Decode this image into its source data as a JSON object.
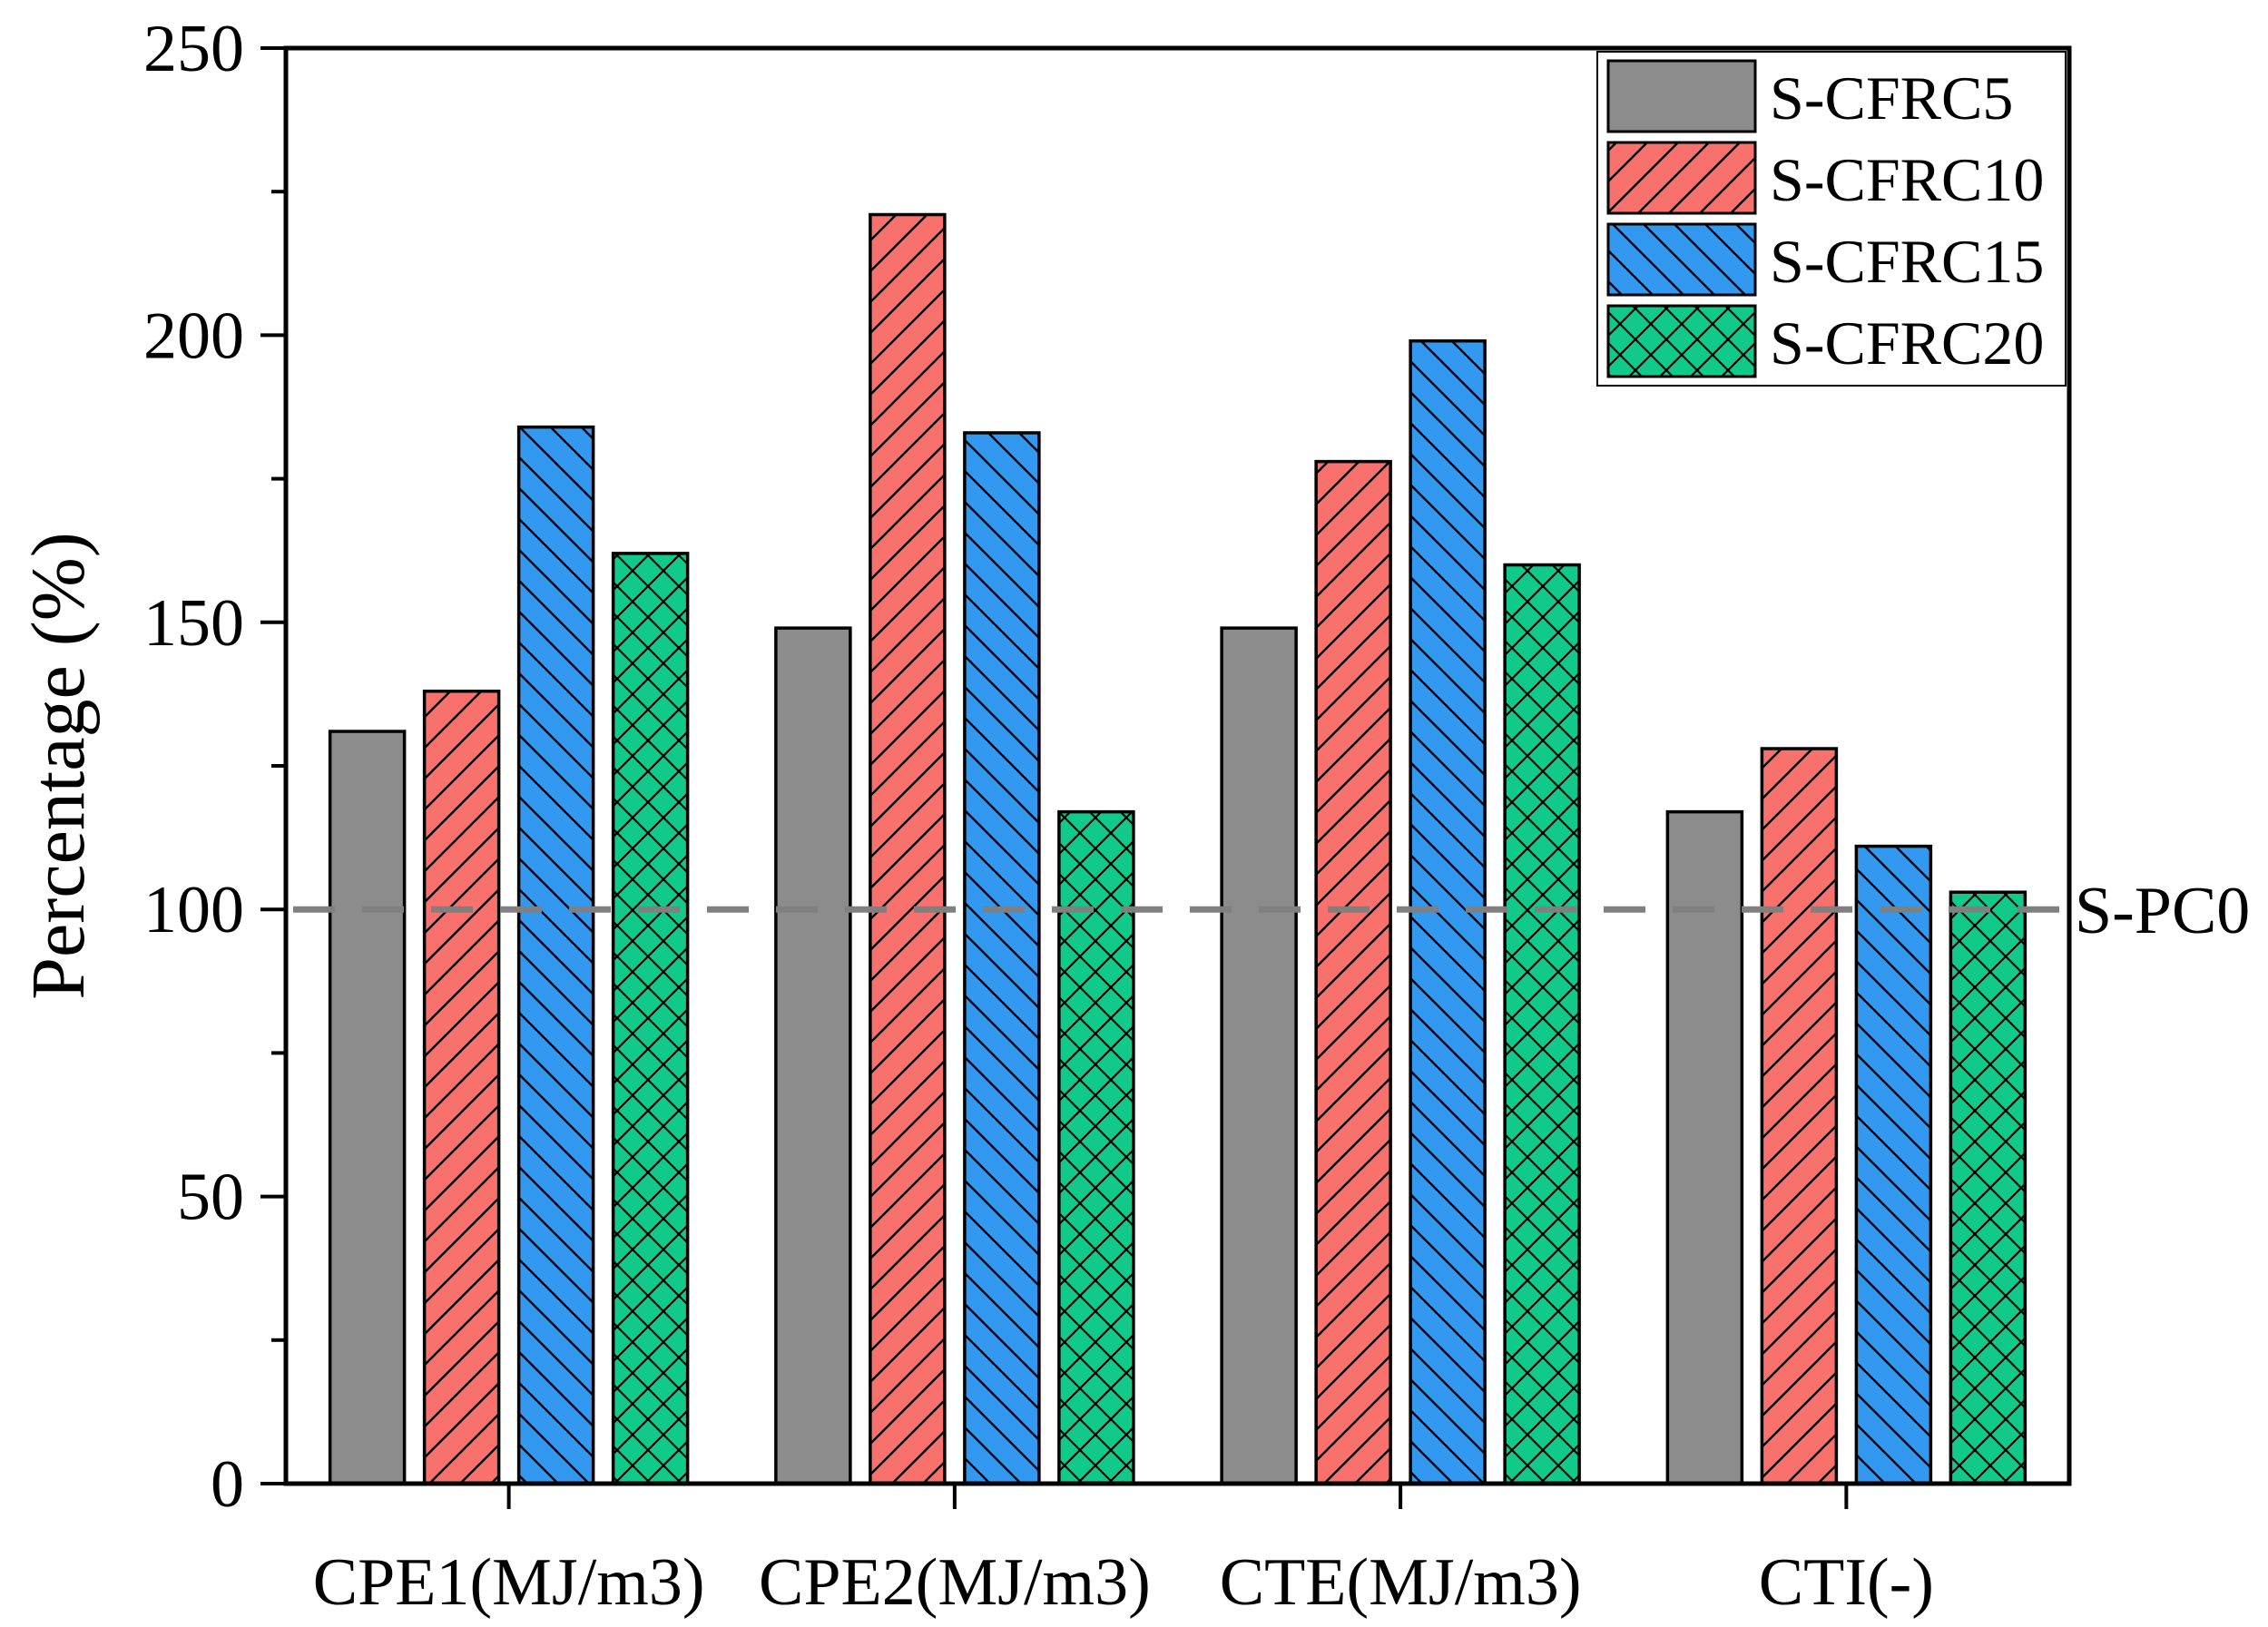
{
  "chart_data": {
    "type": "bar",
    "title": "",
    "xlabel": "",
    "ylabel": "Percentage (%)",
    "ylim": [
      0,
      250
    ],
    "yticks": [
      "0",
      "50",
      "100",
      "150",
      "200",
      "250"
    ],
    "categories": [
      "CPE1(MJ/m3)",
      "CPE2(MJ/m3)",
      "CTE(MJ/m3)",
      "CTI(-)"
    ],
    "series": [
      {
        "name": "S-CFRC5",
        "color": "#8c8c8c",
        "pattern": "solid",
        "values": [
          131,
          149,
          149,
          117
        ]
      },
      {
        "name": "S-CFRC10",
        "color": "#f8716c",
        "pattern": "forward-diagonal",
        "values": [
          138,
          221,
          178,
          128
        ]
      },
      {
        "name": "S-CFRC15",
        "color": "#3399f0",
        "pattern": "backward-diagonal",
        "values": [
          184,
          183,
          199,
          111
        ]
      },
      {
        "name": "S-CFRC20",
        "color": "#12c98c",
        "pattern": "crosshatch",
        "values": [
          162,
          117,
          160,
          103
        ]
      }
    ],
    "reference_line": {
      "label": "S-PC0",
      "value": 100,
      "color": "#808080",
      "style": "dashed"
    },
    "legend_position": "top-right",
    "grid": false
  }
}
